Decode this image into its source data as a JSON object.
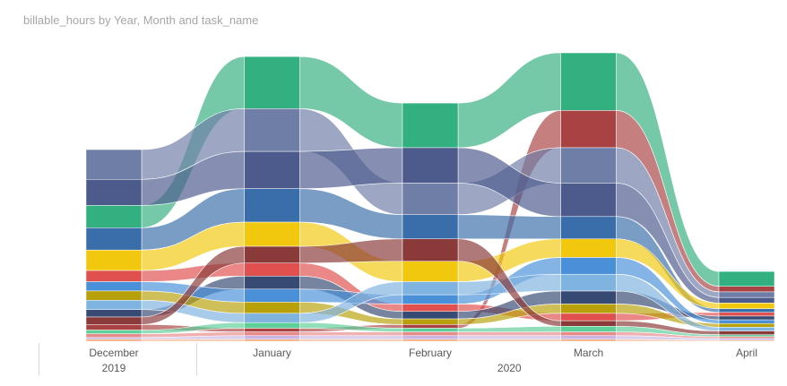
{
  "chart_title": "billable_hours by Year, Month and task_name",
  "chart_data": {
    "type": "ribbon",
    "title": "billable_hours by Year, Month and task_name",
    "categories": [
      "December",
      "January",
      "February",
      "March",
      "April"
    ],
    "year_labels": [
      "2019",
      "2020"
    ],
    "colors": [
      "#33b07f",
      "#a94343",
      "#6e7ea6",
      "#4c5a8c",
      "#3a6eaa",
      "#f2c80f",
      "#e0504e",
      "#374a73",
      "#4a90d9",
      "#b8a00a",
      "#7fb3e0",
      "#8b3a3a",
      "#5fcf9a",
      "#e88a8a",
      "#c7b6e6",
      "#f2a46a"
    ],
    "series": [
      {
        "values": [
          1.2,
          2.8,
          2.4,
          3.1,
          0.8
        ]
      },
      {
        "values": [
          0.3,
          0.2,
          0.2,
          2.0,
          0.3
        ]
      },
      {
        "values": [
          1.6,
          2.3,
          1.7,
          1.9,
          0.3
        ]
      },
      {
        "values": [
          1.4,
          2.0,
          1.9,
          1.8,
          0.3
        ]
      },
      {
        "values": [
          1.2,
          1.8,
          1.3,
          1.2,
          0.2
        ]
      },
      {
        "values": [
          1.1,
          1.3,
          1.1,
          1.0,
          0.3
        ]
      },
      {
        "values": [
          0.6,
          0.7,
          0.4,
          0.4,
          0.2
        ]
      },
      {
        "values": [
          0.4,
          0.7,
          0.4,
          0.7,
          0.2
        ]
      },
      {
        "values": [
          0.5,
          0.7,
          0.5,
          0.9,
          0.2
        ]
      },
      {
        "values": [
          0.5,
          0.6,
          0.3,
          0.5,
          0.2
        ]
      },
      {
        "values": [
          0.5,
          0.5,
          0.7,
          0.9,
          0.2
        ]
      },
      {
        "values": [
          0.4,
          0.9,
          1.2,
          0.3,
          0.2
        ]
      },
      {
        "values": [
          0.2,
          0.3,
          0.2,
          0.3,
          0.1
        ]
      },
      {
        "values": [
          0.2,
          0.2,
          0.2,
          0.2,
          0.1
        ]
      },
      {
        "values": [
          0.1,
          0.2,
          0.2,
          0.2,
          0.1
        ]
      },
      {
        "values": [
          0.1,
          0.1,
          0.1,
          0.1,
          0.05
        ]
      }
    ],
    "legend": "none",
    "grid": false
  }
}
